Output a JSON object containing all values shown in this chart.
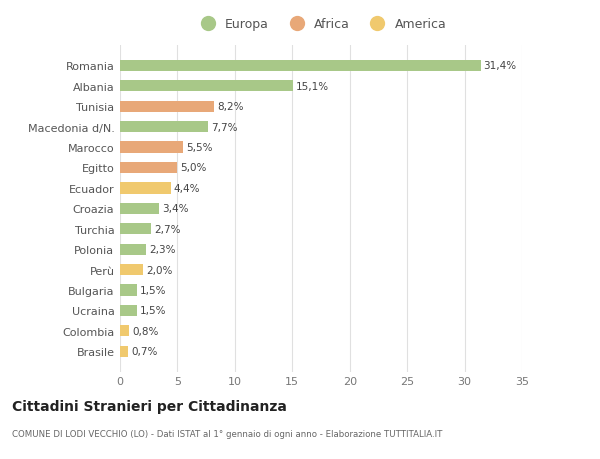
{
  "categories": [
    "Brasile",
    "Colombia",
    "Ucraina",
    "Bulgaria",
    "Perù",
    "Polonia",
    "Turchia",
    "Croazia",
    "Ecuador",
    "Egitto",
    "Marocco",
    "Macedonia d/N.",
    "Tunisia",
    "Albania",
    "Romania"
  ],
  "values": [
    0.7,
    0.8,
    1.5,
    1.5,
    2.0,
    2.3,
    2.7,
    3.4,
    4.4,
    5.0,
    5.5,
    7.7,
    8.2,
    15.1,
    31.4
  ],
  "labels": [
    "0,7%",
    "0,8%",
    "1,5%",
    "1,5%",
    "2,0%",
    "2,3%",
    "2,7%",
    "3,4%",
    "4,4%",
    "5,0%",
    "5,5%",
    "7,7%",
    "8,2%",
    "15,1%",
    "31,4%"
  ],
  "colors": [
    "#f0c96e",
    "#f0c96e",
    "#a8c888",
    "#a8c888",
    "#f0c96e",
    "#a8c888",
    "#a8c888",
    "#a8c888",
    "#f0c96e",
    "#e8a878",
    "#e8a878",
    "#a8c888",
    "#e8a878",
    "#a8c888",
    "#a8c888"
  ],
  "continent_colors": {
    "Europa": "#a8c888",
    "Africa": "#e8a878",
    "America": "#f0c96e"
  },
  "title": "Cittadini Stranieri per Cittadinanza",
  "subtitle": "COMUNE DI LODI VECCHIO (LO) - Dati ISTAT al 1° gennaio di ogni anno - Elaborazione TUTTITALIA.IT",
  "legend_labels": [
    "Europa",
    "Africa",
    "America"
  ],
  "xlim": [
    0,
    35
  ],
  "xticks": [
    0,
    5,
    10,
    15,
    20,
    25,
    30,
    35
  ],
  "background_color": "#ffffff",
  "grid_color": "#e0e0e0",
  "bar_height": 0.55
}
